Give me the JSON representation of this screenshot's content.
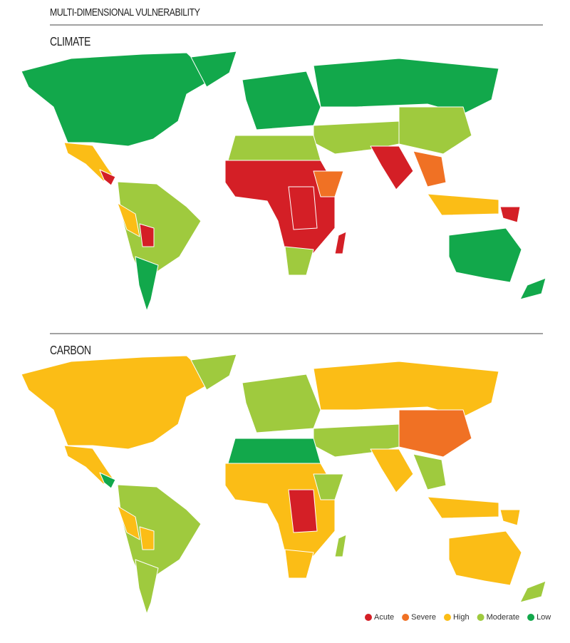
{
  "header": {
    "title": "MULTI-DIMENSIONAL VULNERABILITY"
  },
  "maps": [
    {
      "title": "CLIMATE"
    },
    {
      "title": "CARBON"
    }
  ],
  "legend": [
    {
      "label": "Acute",
      "color": "#d41f26"
    },
    {
      "label": "Severe",
      "color": "#f07124"
    },
    {
      "label": "High",
      "color": "#fbbd16"
    },
    {
      "label": "Moderate",
      "color": "#9fca3e"
    },
    {
      "label": "Low",
      "color": "#12a84b"
    }
  ]
}
